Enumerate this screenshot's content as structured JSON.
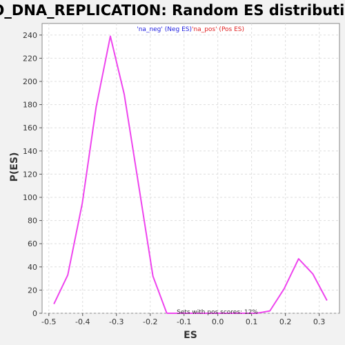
{
  "chart_data": {
    "type": "line",
    "title": "GO_DNA_REPLICATION: Random ES distribution",
    "xlabel": "ES",
    "ylabel": "P(ES)",
    "xlim": [
      -0.52,
      0.36
    ],
    "ylim": [
      0,
      250
    ],
    "x_ticks": [
      "-0.5",
      "-0.4",
      "-0.3",
      "-0.2",
      "-0.1",
      "0.0",
      "0.1",
      "0.2",
      "0.3"
    ],
    "x_tick_values": [
      -0.5,
      -0.4,
      -0.3,
      -0.2,
      -0.1,
      0.0,
      0.1,
      0.2,
      0.3
    ],
    "y_ticks": [
      "0",
      "20",
      "40",
      "60",
      "80",
      "100",
      "120",
      "140",
      "160",
      "180",
      "200",
      "220",
      "240"
    ],
    "y_tick_values": [
      0,
      20,
      40,
      60,
      80,
      100,
      120,
      140,
      160,
      180,
      200,
      220,
      240
    ],
    "grid": true,
    "legend_position": "top-center",
    "annotation": "Sets with pos scores: 12%",
    "series": [
      {
        "name": "'na_neg' (Neg ES)",
        "legend_color": "#2020e0",
        "color": "#ee44ee",
        "x": [
          -0.485,
          -0.444,
          -0.401,
          -0.36,
          -0.318,
          -0.277,
          -0.234,
          -0.192,
          -0.151
        ],
        "y": [
          8,
          33,
          95,
          178,
          239,
          189,
          110,
          32,
          0
        ]
      },
      {
        "name": "'na_pos' (Pos ES)",
        "legend_color": "#e02020",
        "color": "#ee44ee",
        "x": [
          -0.151,
          0.115,
          0.154,
          0.196,
          0.239,
          0.281,
          0.323
        ],
        "y": [
          0,
          0,
          2,
          21,
          47,
          34,
          11
        ]
      }
    ]
  }
}
